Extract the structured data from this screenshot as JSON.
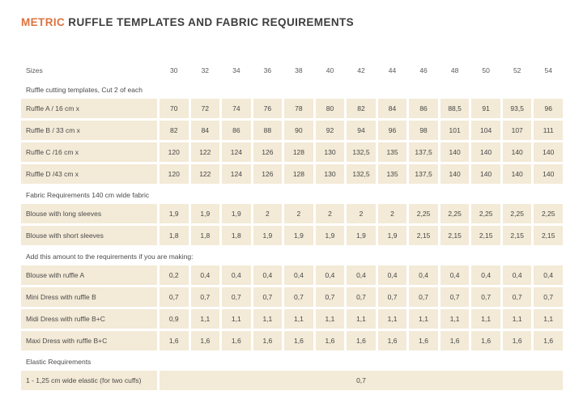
{
  "title": {
    "accent": "METRIC",
    "rest": " RUFFLE TEMPLATES AND FABRIC REQUIREMENTS"
  },
  "colors": {
    "accent": "#dd7340",
    "cell_background": "#f3ead7",
    "text": "#4b4b4b"
  },
  "table": {
    "sizes_label": "Sizes",
    "sizes": [
      "30",
      "32",
      "34",
      "36",
      "38",
      "40",
      "42",
      "44",
      "46",
      "48",
      "50",
      "52",
      "54"
    ],
    "sections": [
      {
        "header": "Ruffle cutting templates, Cut 2 of each",
        "rows": [
          {
            "label": "Ruffle A / 16 cm x",
            "values": [
              "70",
              "72",
              "74",
              "76",
              "78",
              "80",
              "82",
              "84",
              "86",
              "88,5",
              "91",
              "93,5",
              "96"
            ]
          },
          {
            "label": "Ruffle B / 33 cm x",
            "values": [
              "82",
              "84",
              "86",
              "88",
              "90",
              "92",
              "94",
              "96",
              "98",
              "101",
              "104",
              "107",
              "111"
            ]
          },
          {
            "label": "Ruffle C /16 cm x",
            "values": [
              "120",
              "122",
              "124",
              "126",
              "128",
              "130",
              "132,5",
              "135",
              "137,5",
              "140",
              "140",
              "140",
              "140"
            ]
          },
          {
            "label": "Ruffle D /43 cm x",
            "values": [
              "120",
              "122",
              "124",
              "126",
              "128",
              "130",
              "132,5",
              "135",
              "137,5",
              "140",
              "140",
              "140",
              "140"
            ]
          }
        ]
      },
      {
        "header": "Fabric Requirements 140 cm wide fabric",
        "rows": [
          {
            "label": "Blouse with long sleeves",
            "values": [
              "1,9",
              "1,9",
              "1,9",
              "2",
              "2",
              "2",
              "2",
              "2",
              "2,25",
              "2,25",
              "2,25",
              "2,25",
              "2,25"
            ]
          },
          {
            "label": "Blouse with short sleeves",
            "values": [
              "1,8",
              "1,8",
              "1,8",
              "1,9",
              "1,9",
              "1,9",
              "1,9",
              "1,9",
              "2,15",
              "2,15",
              "2,15",
              "2,15",
              "2,15"
            ]
          }
        ]
      },
      {
        "header": "Add this amount to the requirements if you are making:",
        "rows": [
          {
            "label": "Blouse with ruffle A",
            "values": [
              "0,2",
              "0,4",
              "0,4",
              "0,4",
              "0,4",
              "0,4",
              "0,4",
              "0,4",
              "0,4",
              "0,4",
              "0,4",
              "0,4",
              "0,4"
            ]
          },
          {
            "label": "Mini Dress with ruffle B",
            "values": [
              "0,7",
              "0,7",
              "0,7",
              "0,7",
              "0,7",
              "0,7",
              "0,7",
              "0,7",
              "0,7",
              "0,7",
              "0,7",
              "0,7",
              "0,7"
            ]
          },
          {
            "label": "Midi Dress with ruffle B+C",
            "values": [
              "0,9",
              "1,1",
              "1,1",
              "1,1",
              "1,1",
              "1,1",
              "1,1",
              "1,1",
              "1,1",
              "1,1",
              "1,1",
              "1,1",
              "1,1"
            ]
          },
          {
            "label": "Maxi Dress with ruffle B+C",
            "values": [
              "1,6",
              "1,6",
              "1,6",
              "1,6",
              "1,6",
              "1,6",
              "1,6",
              "1,6",
              "1,6",
              "1,6",
              "1,6",
              "1,6",
              "1,6"
            ]
          }
        ]
      },
      {
        "header": "Elastic Requirements",
        "rows": [
          {
            "label": "1 - 1,25 cm wide elastic (for two cuffs)",
            "merged": true,
            "values": [
              "0,7"
            ]
          }
        ]
      }
    ]
  }
}
